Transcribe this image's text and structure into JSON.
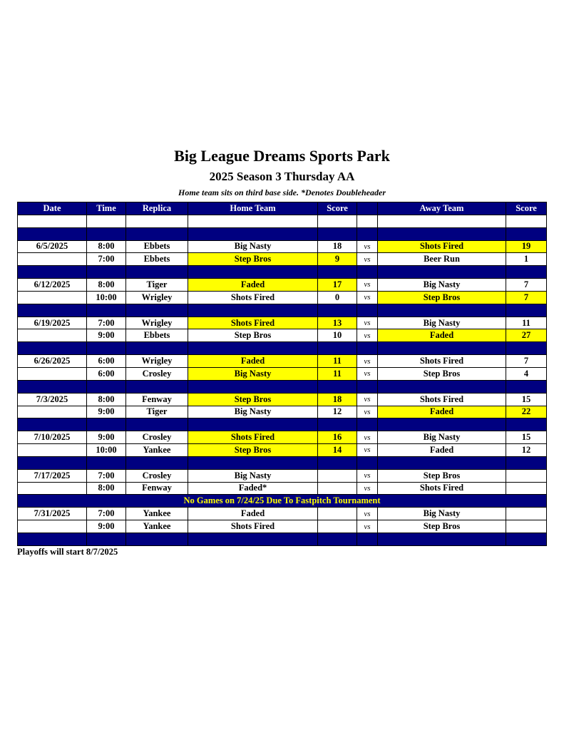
{
  "title": "Big League Dreams Sports Park",
  "subtitle": "2025 Season 3 Thursday AA",
  "note": "Home team sits on third base side.  *Denotes Doubleheader",
  "columns": [
    "Date",
    "Time",
    "Replica",
    "Home Team",
    "Score",
    "",
    "Away Team",
    "Score"
  ],
  "vs_label": "vs",
  "highlight_color": "#ffff00",
  "header_color": "#000080",
  "weeks": [
    {
      "date": "6/5/2025",
      "games": [
        {
          "time": "8:00",
          "replica": "Ebbets",
          "home": "Big Nasty",
          "home_score": "18",
          "away": "Shots Fired",
          "away_score": "19",
          "winner": "away"
        },
        {
          "time": "7:00",
          "replica": "Ebbets",
          "home": "Step Bros",
          "home_score": "9",
          "away": "Beer Run",
          "away_score": "1",
          "winner": "home"
        }
      ]
    },
    {
      "date": "6/12/2025",
      "games": [
        {
          "time": "8:00",
          "replica": "Tiger",
          "home": "Faded",
          "home_score": "17",
          "away": "Big Nasty",
          "away_score": "7",
          "winner": "home"
        },
        {
          "time": "10:00",
          "replica": "Wrigley",
          "home": "Shots Fired",
          "home_score": "0",
          "away": "Step Bros",
          "away_score": "7",
          "winner": "away"
        }
      ]
    },
    {
      "date": "6/19/2025",
      "games": [
        {
          "time": "7:00",
          "replica": "Wrigley",
          "home": "Shots Fired",
          "home_score": "13",
          "away": "Big Nasty",
          "away_score": "11",
          "winner": "home"
        },
        {
          "time": "9:00",
          "replica": "Ebbets",
          "home": "Step Bros",
          "home_score": "10",
          "away": "Faded",
          "away_score": "27",
          "winner": "away"
        }
      ]
    },
    {
      "date": "6/26/2025",
      "games": [
        {
          "time": "6:00",
          "replica": "Wrigley",
          "home": "Faded",
          "home_score": "11",
          "away": "Shots Fired",
          "away_score": "7",
          "winner": "home"
        },
        {
          "time": "6:00",
          "replica": "Crosley",
          "home": "Big Nasty",
          "home_score": "11",
          "away": "Step Bros",
          "away_score": "4",
          "winner": "home"
        }
      ]
    },
    {
      "date": "7/3/2025",
      "games": [
        {
          "time": "8:00",
          "replica": "Fenway",
          "home": "Step Bros",
          "home_score": "18",
          "away": "Shots Fired",
          "away_score": "15",
          "winner": "home"
        },
        {
          "time": "9:00",
          "replica": "Tiger",
          "home": "Big Nasty",
          "home_score": "12",
          "away": "Faded",
          "away_score": "22",
          "winner": "away"
        }
      ]
    },
    {
      "date": "7/10/2025",
      "games": [
        {
          "time": "9:00",
          "replica": "Crosley",
          "home": "Shots Fired",
          "home_score": "16",
          "away": "Big Nasty",
          "away_score": "15",
          "winner": "home"
        },
        {
          "time": "10:00",
          "replica": "Yankee",
          "home": "Step Bros",
          "home_score": "14",
          "away": "Faded",
          "away_score": "12",
          "winner": "home"
        }
      ]
    },
    {
      "date": "7/17/2025",
      "games": [
        {
          "time": "7:00",
          "replica": "Crosley",
          "home": "Big Nasty",
          "home_score": "",
          "away": "Step Bros",
          "away_score": "",
          "winner": null
        },
        {
          "time": "8:00",
          "replica": "Fenway",
          "home": "Faded*",
          "home_score": "",
          "away": "Shots Fired",
          "away_score": "",
          "winner": null
        }
      ],
      "notice": "No Games on 7/24/25 Due To Fastpitch Tournament"
    },
    {
      "date": "7/31/2025",
      "games": [
        {
          "time": "7:00",
          "replica": "Yankee",
          "home": "Faded",
          "home_score": "",
          "away": "Big Nasty",
          "away_score": "",
          "winner": null
        },
        {
          "time": "9:00",
          "replica": "Yankee",
          "home": "Shots Fired",
          "home_score": "",
          "away": "Step Bros",
          "away_score": "",
          "winner": null
        }
      ]
    }
  ],
  "footer": "Playoffs will start 8/7/2025"
}
